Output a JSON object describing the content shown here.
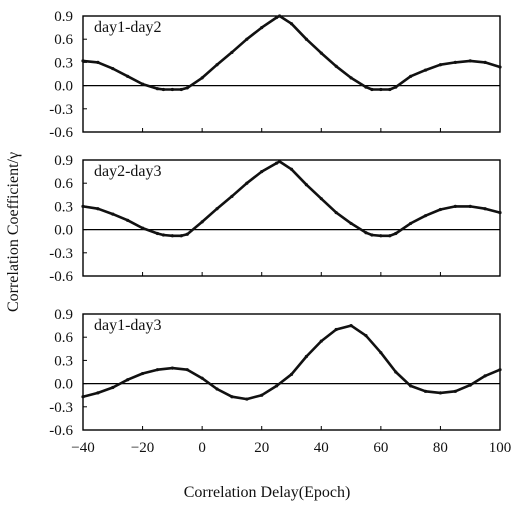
{
  "chart_data": [
    {
      "type": "line",
      "label": "day1-day2",
      "x": [
        -40,
        -35,
        -30,
        -25,
        -20,
        -15,
        -13,
        -10,
        -7,
        -5,
        0,
        5,
        10,
        15,
        20,
        25,
        26,
        30,
        35,
        40,
        45,
        50,
        55,
        57,
        60,
        63,
        65,
        70,
        75,
        80,
        85,
        90,
        95,
        100
      ],
      "y": [
        0.32,
        0.3,
        0.22,
        0.12,
        0.02,
        -0.04,
        -0.05,
        -0.05,
        -0.05,
        -0.03,
        0.1,
        0.27,
        0.43,
        0.6,
        0.75,
        0.88,
        0.9,
        0.8,
        0.6,
        0.42,
        0.25,
        0.1,
        -0.02,
        -0.05,
        -0.05,
        -0.05,
        -0.02,
        0.12,
        0.2,
        0.27,
        0.3,
        0.32,
        0.3,
        0.24
      ],
      "ylim": [
        -0.6,
        0.9
      ],
      "yticks": [
        "0.9",
        "0.6",
        "0.3",
        "0.0",
        "-0.3",
        "-0.6"
      ]
    },
    {
      "type": "line",
      "label": "day2-day3",
      "x": [
        -40,
        -35,
        -30,
        -25,
        -20,
        -15,
        -13,
        -10,
        -7,
        -5,
        0,
        5,
        10,
        15,
        20,
        25,
        26,
        30,
        35,
        40,
        45,
        50,
        55,
        57,
        60,
        63,
        65,
        70,
        75,
        80,
        85,
        90,
        95,
        100
      ],
      "y": [
        0.3,
        0.27,
        0.2,
        0.12,
        0.02,
        -0.05,
        -0.07,
        -0.08,
        -0.08,
        -0.06,
        0.1,
        0.27,
        0.43,
        0.6,
        0.75,
        0.86,
        0.88,
        0.78,
        0.58,
        0.4,
        0.22,
        0.08,
        -0.04,
        -0.07,
        -0.08,
        -0.08,
        -0.05,
        0.08,
        0.18,
        0.26,
        0.3,
        0.3,
        0.27,
        0.22
      ],
      "ylim": [
        -0.6,
        0.9
      ],
      "yticks": [
        "0.9",
        "0.6",
        "0.3",
        "0.0",
        "-0.3",
        "-0.6"
      ]
    },
    {
      "type": "line",
      "label": "day1-day3",
      "x": [
        -40,
        -35,
        -30,
        -25,
        -20,
        -15,
        -10,
        -5,
        0,
        5,
        10,
        15,
        20,
        25,
        30,
        35,
        40,
        45,
        50,
        55,
        60,
        65,
        70,
        75,
        80,
        85,
        90,
        95,
        100
      ],
      "y": [
        -0.17,
        -0.12,
        -0.05,
        0.05,
        0.13,
        0.18,
        0.2,
        0.18,
        0.07,
        -0.07,
        -0.17,
        -0.2,
        -0.15,
        -0.03,
        0.12,
        0.35,
        0.55,
        0.7,
        0.75,
        0.62,
        0.4,
        0.15,
        -0.03,
        -0.1,
        -0.12,
        -0.1,
        -0.02,
        0.1,
        0.18
      ],
      "ylim": [
        -0.6,
        0.9
      ],
      "yticks": [
        "0.9",
        "0.6",
        "0.3",
        "0.0",
        "-0.3",
        "-0.6"
      ]
    }
  ],
  "xaxis": {
    "xlim": [
      -40,
      100
    ],
    "ticks": [
      -40,
      -20,
      0,
      20,
      40,
      60,
      80,
      100
    ],
    "tick_labels": [
      "−40",
      "−20",
      "0",
      "20",
      "40",
      "60",
      "80",
      "100"
    ],
    "label": "Correlation Delay(Epoch)"
  },
  "yaxis": {
    "label": "Correlation Coefficient/γ"
  }
}
